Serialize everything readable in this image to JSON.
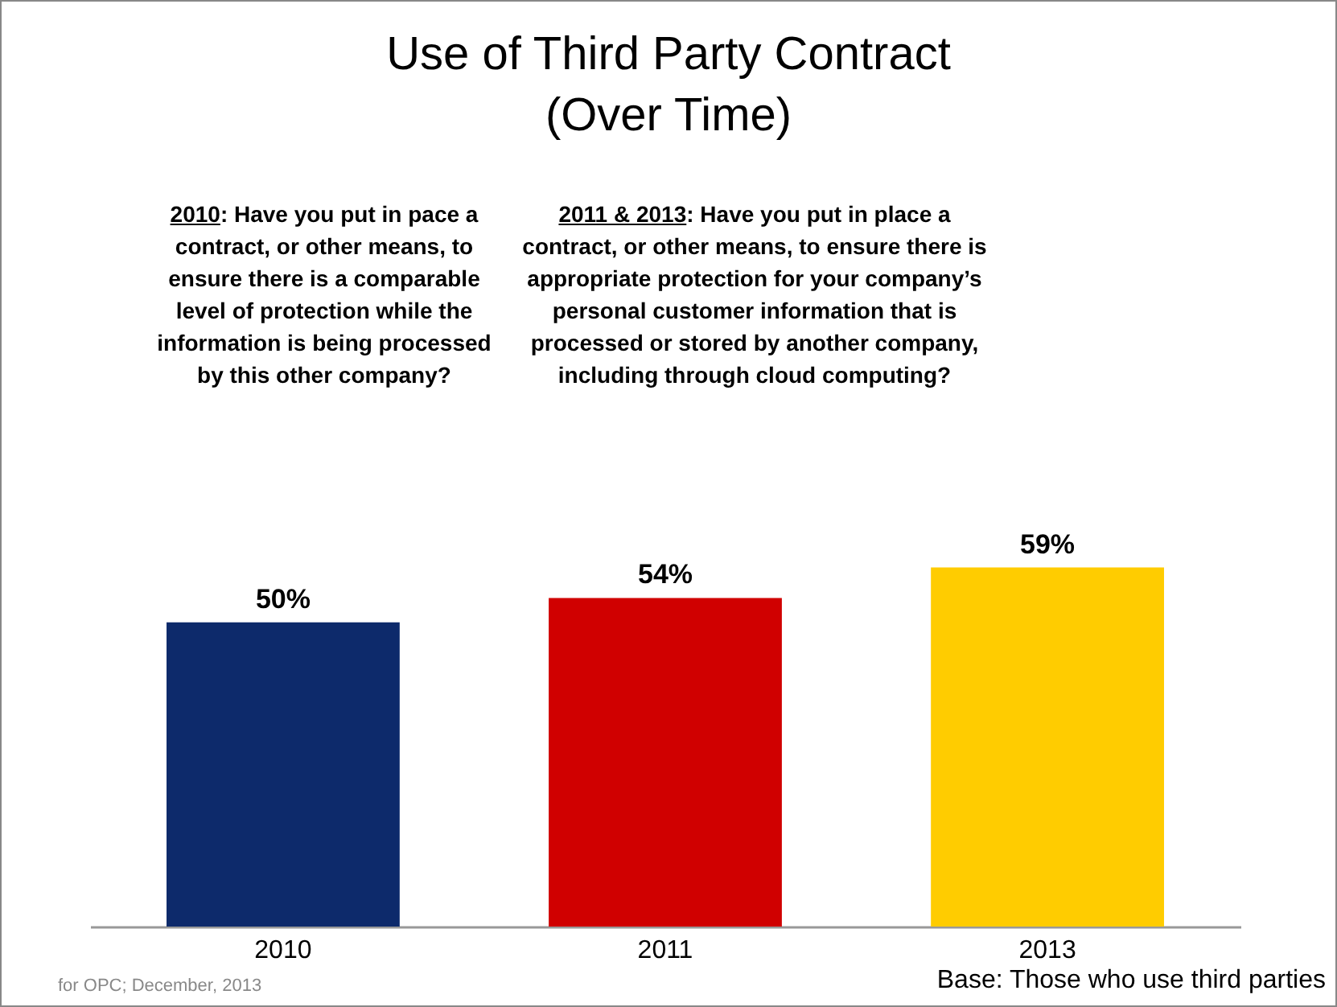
{
  "chart_data": {
    "type": "bar",
    "title": "Use of Third Party Contract\n(Over Time)",
    "categories": [
      "2010",
      "2011",
      "2013"
    ],
    "values": [
      50,
      54,
      59
    ],
    "colors": [
      "#0d2a6b",
      "#d00000",
      "#ffcc00"
    ],
    "value_labels": [
      "50%",
      "54%",
      "59%"
    ],
    "tick_labels": "x",
    "annotations": [
      "2010: Have you put in pace a contract, or other means, to ensure there is a comparable level of protection while the information is being processed by this other company?",
      "2011 & 2013: Have you put in place a contract, or other means, to ensure there is appropriate protection for your company’s personal customer information that is processed or stored by another company, including through cloud computing?",
      "for OPC; December, 2013",
      "Base: Those who use third parties"
    ]
  }
}
